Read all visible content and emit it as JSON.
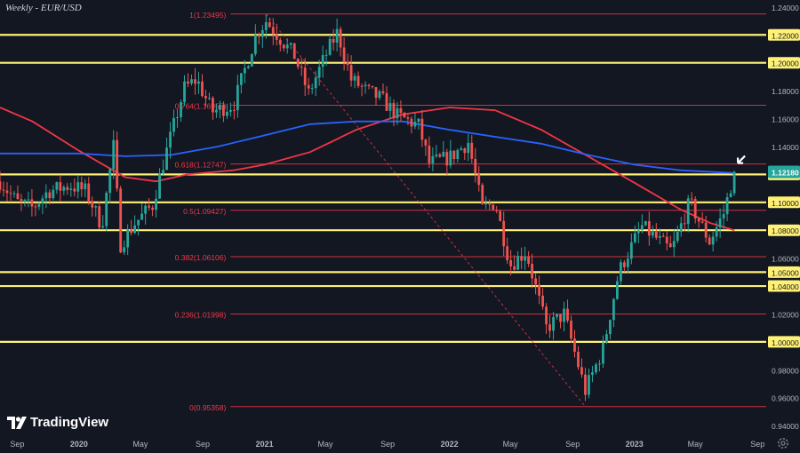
{
  "title": "Weekly - EUR/USD",
  "brand": "TradingView",
  "icons": {
    "logo": "tradingview-logo-icon",
    "settings": "settings-gear-icon",
    "arrow": "annotation-arrow-icon"
  },
  "colors": {
    "background": "#131722",
    "bullish": "#26a69a",
    "bearish": "#ef5350",
    "ma_fast": "#f23645",
    "ma_slow": "#2962ff",
    "level": "#fff176",
    "fib": "#f23645",
    "current_price_bg": "#26a69a"
  },
  "chart_data": {
    "type": "candlestick",
    "timeframe": "Weekly",
    "symbol": "EUR/USD",
    "y_range": [
      0.935,
      1.245
    ],
    "x_range": [
      "2019-07-29",
      "2023-09-18"
    ],
    "y_ticks": [
      "1.24000",
      "1.22000",
      "1.20000",
      "1.18000",
      "1.16000",
      "1.14000",
      "1.12000",
      "1.10000",
      "1.08000",
      "1.06000",
      "1.05000",
      "1.04000",
      "1.02000",
      "1.00000",
      "0.98000",
      "0.96000",
      "0.94000"
    ],
    "y_tick_values": [
      1.24,
      1.22,
      1.2,
      1.18,
      1.16,
      1.14,
      1.12,
      1.1,
      1.08,
      1.06,
      1.05,
      1.04,
      1.02,
      1.0,
      0.98,
      0.96,
      0.94
    ],
    "highlighted_ticks": [
      "1.22000",
      "1.20000",
      "1.12000",
      "1.10000",
      "1.08000",
      "1.05000",
      "1.04000",
      "1.00000"
    ],
    "x_ticks": [
      {
        "label": "Sep",
        "date": "2019-09-01",
        "bold": false
      },
      {
        "label": "2020",
        "date": "2020-01-01",
        "bold": true
      },
      {
        "label": "May",
        "date": "2020-05-01",
        "bold": false
      },
      {
        "label": "Sep",
        "date": "2020-09-01",
        "bold": false
      },
      {
        "label": "2021",
        "date": "2021-01-01",
        "bold": true
      },
      {
        "label": "May",
        "date": "2021-05-01",
        "bold": false
      },
      {
        "label": "Sep",
        "date": "2021-09-01",
        "bold": false
      },
      {
        "label": "2022",
        "date": "2022-01-01",
        "bold": true
      },
      {
        "label": "May",
        "date": "2022-05-01",
        "bold": false
      },
      {
        "label": "Sep",
        "date": "2022-09-01",
        "bold": false
      },
      {
        "label": "2023",
        "date": "2023-01-01",
        "bold": true
      },
      {
        "label": "May",
        "date": "2023-05-01",
        "bold": false
      },
      {
        "label": "Sep",
        "date": "2023-09-01",
        "bold": false
      }
    ],
    "current_price": {
      "label": "1.12180",
      "value": 1.1218
    },
    "horizontal_levels": [
      1.22,
      1.2,
      1.12,
      1.1,
      1.08,
      1.05,
      1.04,
      1.0
    ],
    "fib_levels": [
      {
        "label": "1(1.23495)",
        "value": 1.23495
      },
      {
        "label": "0.764(1.16955)",
        "value": 1.16955
      },
      {
        "label": "0.618(1.12747)",
        "value": 1.12747
      },
      {
        "label": "0.5(1.09427)",
        "value": 1.09427
      },
      {
        "label": "0.382(1.06106)",
        "value": 1.06106
      },
      {
        "label": "0.236(1.01998)",
        "value": 1.01998
      },
      {
        "label": "0(0.95358)",
        "value": 0.95358
      }
    ],
    "fib_trend": {
      "from": {
        "date": "2021-01-04",
        "value": 1.23495
      },
      "to": {
        "date": "2022-09-26",
        "value": 0.95358
      }
    },
    "series": [
      {
        "name": "",
        "color": "#f23645",
        "points": [
          {
            "date": "2019-07-29",
            "value": 1.168
          },
          {
            "date": "2019-10-01",
            "value": 1.158
          },
          {
            "date": "2020-01-01",
            "value": 1.137
          },
          {
            "date": "2020-04-01",
            "value": 1.118
          },
          {
            "date": "2020-06-01",
            "value": 1.115
          },
          {
            "date": "2020-08-01",
            "value": 1.12
          },
          {
            "date": "2020-11-01",
            "value": 1.123
          },
          {
            "date": "2021-01-01",
            "value": 1.127
          },
          {
            "date": "2021-04-01",
            "value": 1.136
          },
          {
            "date": "2021-07-01",
            "value": 1.152
          },
          {
            "date": "2021-10-01",
            "value": 1.163
          },
          {
            "date": "2022-01-01",
            "value": 1.168
          },
          {
            "date": "2022-04-01",
            "value": 1.166
          },
          {
            "date": "2022-07-01",
            "value": 1.152
          },
          {
            "date": "2022-10-01",
            "value": 1.133
          },
          {
            "date": "2023-01-01",
            "value": 1.114
          },
          {
            "date": "2023-04-01",
            "value": 1.095
          },
          {
            "date": "2023-06-01",
            "value": 1.085
          },
          {
            "date": "2023-07-17",
            "value": 1.08
          }
        ]
      },
      {
        "name": "",
        "color": "#2962ff",
        "points": [
          {
            "date": "2019-07-29",
            "value": 1.135
          },
          {
            "date": "2019-10-01",
            "value": 1.135
          },
          {
            "date": "2020-01-01",
            "value": 1.135
          },
          {
            "date": "2020-04-01",
            "value": 1.133
          },
          {
            "date": "2020-07-01",
            "value": 1.134
          },
          {
            "date": "2020-10-01",
            "value": 1.14
          },
          {
            "date": "2021-01-01",
            "value": 1.148
          },
          {
            "date": "2021-04-01",
            "value": 1.156
          },
          {
            "date": "2021-07-01",
            "value": 1.158
          },
          {
            "date": "2021-10-01",
            "value": 1.158
          },
          {
            "date": "2022-01-01",
            "value": 1.152
          },
          {
            "date": "2022-04-01",
            "value": 1.147
          },
          {
            "date": "2022-07-01",
            "value": 1.142
          },
          {
            "date": "2022-10-01",
            "value": 1.134
          },
          {
            "date": "2023-01-01",
            "value": 1.127
          },
          {
            "date": "2023-04-01",
            "value": 1.123
          },
          {
            "date": "2023-07-17",
            "value": 1.121
          }
        ]
      }
    ],
    "price_path": [
      {
        "date": "2019-07-29",
        "value": 1.115
      },
      {
        "date": "2019-09-01",
        "value": 1.1
      },
      {
        "date": "2019-10-01",
        "value": 1.096
      },
      {
        "date": "2019-11-01",
        "value": 1.108
      },
      {
        "date": "2019-12-15",
        "value": 1.112
      },
      {
        "date": "2020-01-15",
        "value": 1.108
      },
      {
        "date": "2020-02-15",
        "value": 1.083
      },
      {
        "date": "2020-03-09",
        "value": 1.14
      },
      {
        "date": "2020-03-23",
        "value": 1.07
      },
      {
        "date": "2020-04-20",
        "value": 1.085
      },
      {
        "date": "2020-05-25",
        "value": 1.098
      },
      {
        "date": "2020-06-15",
        "value": 1.128
      },
      {
        "date": "2020-07-27",
        "value": 1.182
      },
      {
        "date": "2020-08-20",
        "value": 1.188
      },
      {
        "date": "2020-09-20",
        "value": 1.165
      },
      {
        "date": "2020-11-01",
        "value": 1.17
      },
      {
        "date": "2020-12-15",
        "value": 1.22
      },
      {
        "date": "2021-01-04",
        "value": 1.23
      },
      {
        "date": "2021-03-01",
        "value": 1.205
      },
      {
        "date": "2021-03-29",
        "value": 1.178
      },
      {
        "date": "2021-05-01",
        "value": 1.205
      },
      {
        "date": "2021-05-25",
        "value": 1.222
      },
      {
        "date": "2021-06-21",
        "value": 1.188
      },
      {
        "date": "2021-07-20",
        "value": 1.18
      },
      {
        "date": "2021-08-20",
        "value": 1.174
      },
      {
        "date": "2021-09-20",
        "value": 1.162
      },
      {
        "date": "2021-11-01",
        "value": 1.155
      },
      {
        "date": "2021-11-22",
        "value": 1.128
      },
      {
        "date": "2022-01-01",
        "value": 1.132
      },
      {
        "date": "2022-02-07",
        "value": 1.143
      },
      {
        "date": "2022-03-07",
        "value": 1.095
      },
      {
        "date": "2022-04-01",
        "value": 1.1
      },
      {
        "date": "2022-05-01",
        "value": 1.055
      },
      {
        "date": "2022-06-01",
        "value": 1.065
      },
      {
        "date": "2022-07-11",
        "value": 1.01
      },
      {
        "date": "2022-08-15",
        "value": 1.02
      },
      {
        "date": "2022-09-26",
        "value": 0.965
      },
      {
        "date": "2022-10-31",
        "value": 0.995
      },
      {
        "date": "2022-12-01",
        "value": 1.05
      },
      {
        "date": "2023-01-15",
        "value": 1.083
      },
      {
        "date": "2023-03-15",
        "value": 1.065
      },
      {
        "date": "2023-04-20",
        "value": 1.1
      },
      {
        "date": "2023-05-29",
        "value": 1.072
      },
      {
        "date": "2023-06-26",
        "value": 1.092
      },
      {
        "date": "2023-07-17",
        "value": 1.1218
      }
    ]
  }
}
